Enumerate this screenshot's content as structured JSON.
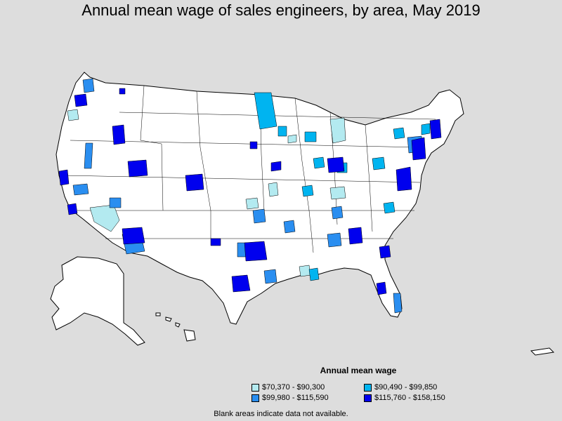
{
  "title": "Annual mean wage of sales engineers, by area, May 2019",
  "legend": {
    "title": "Annual mean wage",
    "items": [
      {
        "label": "$70,370 - $90,300",
        "color": "#b3eaf0"
      },
      {
        "label": "$90,490 - $99,850",
        "color": "#00b4f0"
      },
      {
        "label": "$99,980 - $115,590",
        "color": "#2a8ef0"
      },
      {
        "label": "$115,760 - $158,150",
        "color": "#0000ee"
      }
    ]
  },
  "note": "Blank areas indicate data not available.",
  "colors": {
    "background": "#dddddd",
    "land": "#ffffff",
    "border": "#000000"
  }
}
